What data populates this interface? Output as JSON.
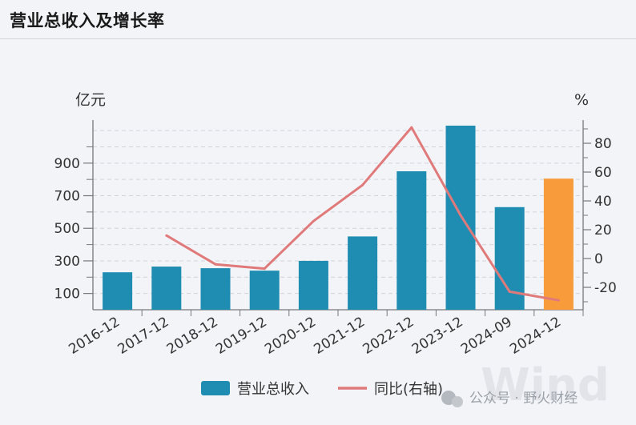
{
  "header": {
    "title": "营业总收入及增长率"
  },
  "watermark": {
    "text": "公众号 · 野火财经",
    "logo_text": "Wind"
  },
  "chart_data": {
    "type": "bar",
    "title": "营业总收入及增长率",
    "categories": [
      "2016-12",
      "2017-12",
      "2018-12",
      "2019-12",
      "2020-12",
      "2021-12",
      "2022-12",
      "2023-12",
      "2024-09",
      "2024-12"
    ],
    "left_axis": {
      "unit": "亿元",
      "ticks": [
        100,
        300,
        500,
        700,
        900
      ],
      "ylim": [
        0,
        1120
      ]
    },
    "right_axis": {
      "unit": "%",
      "ticks": [
        -20,
        0,
        20,
        40,
        60,
        80
      ],
      "ylim": [
        -36,
        97
      ]
    },
    "series": [
      {
        "name": "营业总收入",
        "kind": "bar",
        "axis": "left",
        "color": "#1f8db2",
        "values": [
          230,
          265,
          255,
          240,
          300,
          450,
          850,
          1130,
          630,
          805
        ]
      },
      {
        "name": "同比(右轴)",
        "kind": "line",
        "axis": "right",
        "color": "#e07a7a",
        "values": [
          null,
          16,
          -4,
          -7,
          26,
          51,
          91,
          30,
          -23,
          -29
        ]
      }
    ],
    "highlight": {
      "index": 9,
      "color": "#f89c3b"
    },
    "grid": true,
    "legend": "bottom"
  }
}
